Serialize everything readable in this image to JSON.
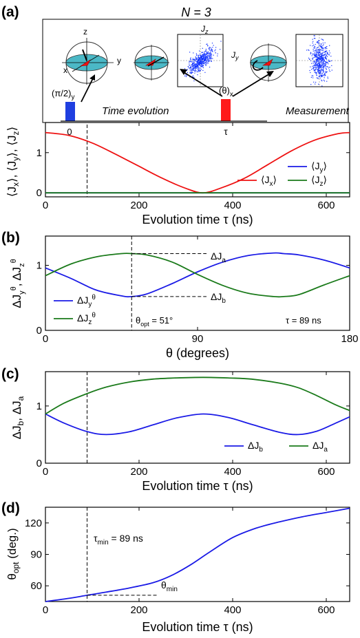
{
  "header": {
    "n_label": "N = 3"
  },
  "inset": {
    "axis_z": "z",
    "axis_y": "y",
    "axis_x": "x",
    "pulse1": "(π/2)",
    "pulse1_sub": "y",
    "pulse2": "(θ)",
    "pulse2_sub": "x",
    "time_evolution": "Time evolution",
    "measurement": "Measurement",
    "t0": "0",
    "tau": "τ",
    "jz": "J",
    "jz_sub": "z",
    "jy": "J",
    "jy_sub": "y",
    "colors": {
      "sphere": "#4bb8c6",
      "pulse1": "#1f3fe0",
      "pulse2": "#ff1a1a",
      "scatter": "#1030ff"
    }
  },
  "colors": {
    "blue": "#1a1ae6",
    "red": "#ee1111",
    "green": "#1a7a1a"
  },
  "chart_data": [
    {
      "panel": "(a)",
      "type": "line",
      "xlabel": "Evolution time τ (ns)",
      "ylabel": "⟨J_x⟩, ⟨J_y⟩, ⟨J_z⟩",
      "xlim": [
        0,
        650
      ],
      "ylim": [
        -0.1,
        1.75
      ],
      "xticks": [
        0,
        200,
        400,
        600
      ],
      "yticks": [
        0,
        1
      ],
      "vline_x": 89,
      "legend_placement": "bottom-right",
      "x": [
        0,
        50,
        100,
        150,
        200,
        250,
        300,
        337,
        375,
        425,
        475,
        525,
        575,
        625,
        650
      ],
      "series": [
        {
          "name": "⟨J_y⟩",
          "color": "blue",
          "values": [
            0,
            0,
            0,
            0,
            0,
            0,
            0,
            0,
            0,
            0,
            0,
            0,
            0,
            0,
            0
          ]
        },
        {
          "name": "⟨J_x⟩",
          "color": "red",
          "values": [
            1.5,
            1.43,
            1.24,
            0.96,
            0.66,
            0.36,
            0.11,
            0,
            0.12,
            0.36,
            0.7,
            1.04,
            1.31,
            1.47,
            1.5
          ]
        },
        {
          "name": "⟨J_z⟩",
          "color": "green",
          "values": [
            0,
            0,
            0,
            0,
            0,
            0,
            0,
            0,
            0,
            0,
            0,
            0,
            0,
            0,
            0
          ]
        }
      ]
    },
    {
      "panel": "(b)",
      "type": "line",
      "xlabel": "θ (degrees)",
      "ylabel": "ΔJ_y^θ, ΔJ_z^θ",
      "xlim": [
        0,
        180
      ],
      "ylim": [
        0,
        1.45
      ],
      "xticks": [
        0,
        90,
        180
      ],
      "yticks": [
        0,
        1
      ],
      "vline_x": 51,
      "annotations": {
        "da": "ΔJ",
        "da_sub": "a",
        "db": "ΔJ",
        "db_sub": "b",
        "theta_opt": "θ",
        "theta_opt_sub": "opt",
        "theta_opt_val": " = 51°",
        "tau_val": "τ = 89 ns"
      },
      "legend_placement": "bottom-left",
      "x": [
        0,
        15,
        30,
        45,
        51,
        60,
        75,
        90,
        105,
        120,
        135,
        141,
        150,
        165,
        180
      ],
      "series": [
        {
          "name": "ΔJ_y^θ",
          "color": "blue",
          "values": [
            0.96,
            0.8,
            0.62,
            0.53,
            0.52,
            0.56,
            0.72,
            0.9,
            1.05,
            1.15,
            1.19,
            1.18,
            1.16,
            1.08,
            0.96
          ]
        },
        {
          "name": "ΔJ_z^θ",
          "color": "green",
          "values": [
            0.84,
            1.02,
            1.13,
            1.18,
            1.18,
            1.16,
            1.05,
            0.86,
            0.69,
            0.57,
            0.52,
            0.52,
            0.55,
            0.7,
            0.84
          ]
        }
      ]
    },
    {
      "panel": "(c)",
      "type": "line",
      "xlabel": "Evolution time τ (ns)",
      "ylabel": "ΔJ_b, ΔJ_a",
      "xlim": [
        0,
        650
      ],
      "ylim": [
        0,
        1.6
      ],
      "xticks": [
        0,
        200,
        400,
        600
      ],
      "yticks": [
        0,
        1
      ],
      "vline_x": 89,
      "legend_placement": "bottom-right",
      "x": [
        0,
        40,
        90,
        130,
        180,
        230,
        280,
        337,
        390,
        440,
        500,
        540,
        580,
        620,
        650
      ],
      "series": [
        {
          "name": "ΔJ_b",
          "color": "blue",
          "values": [
            0.86,
            0.7,
            0.55,
            0.5,
            0.55,
            0.67,
            0.79,
            0.86,
            0.8,
            0.68,
            0.54,
            0.5,
            0.56,
            0.7,
            0.81
          ]
        },
        {
          "name": "ΔJ_a",
          "color": "green",
          "values": [
            0.86,
            1.05,
            1.22,
            1.33,
            1.42,
            1.47,
            1.49,
            1.5,
            1.49,
            1.47,
            1.4,
            1.32,
            1.18,
            1.02,
            0.92
          ]
        }
      ]
    },
    {
      "panel": "(d)",
      "type": "line",
      "xlabel": "Evolution time τ (ns)",
      "ylabel": "θ_opt (deg.)",
      "xlim": [
        0,
        650
      ],
      "ylim": [
        45,
        135
      ],
      "xticks": [
        0,
        200,
        400,
        600
      ],
      "yticks": [
        60,
        90,
        120
      ],
      "vline_x": 89,
      "annotations": {
        "tau_min": "τ",
        "tau_min_sub": "min",
        "tau_min_val": " = 89 ns",
        "theta_min": "θ",
        "theta_min_sub": "min"
      },
      "hline_y": 51,
      "x": [
        0,
        50,
        89,
        130,
        180,
        230,
        270,
        310,
        350,
        400,
        450,
        500,
        550,
        600,
        650
      ],
      "series": [
        {
          "name": "",
          "color": "blue",
          "values": [
            45,
            48,
            51,
            54,
            58,
            63,
            70,
            80,
            92,
            106,
            115,
            121,
            126,
            130,
            134
          ]
        }
      ]
    }
  ]
}
